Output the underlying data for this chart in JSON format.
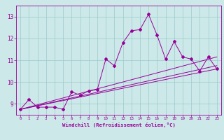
{
  "xlabel": "Windchill (Refroidissement éolien,°C)",
  "bg_color": "#cce8e8",
  "line_color": "#990099",
  "grid_color": "#99cccc",
  "axis_color": "#990099",
  "xlim": [
    -0.5,
    23.5
  ],
  "ylim": [
    8.5,
    13.5
  ],
  "xticks": [
    0,
    1,
    2,
    3,
    4,
    5,
    6,
    7,
    8,
    9,
    10,
    11,
    12,
    13,
    14,
    15,
    16,
    17,
    18,
    19,
    20,
    21,
    22,
    23
  ],
  "yticks": [
    9,
    10,
    11,
    12,
    13
  ],
  "series1_x": [
    0,
    1,
    2,
    3,
    4,
    5,
    6,
    7,
    8,
    9,
    10,
    11,
    12,
    13,
    14,
    15,
    16,
    17,
    18,
    19,
    20,
    21,
    22,
    23
  ],
  "series1_y": [
    8.75,
    9.2,
    8.85,
    8.85,
    8.85,
    8.75,
    9.55,
    9.4,
    9.6,
    9.65,
    11.05,
    10.75,
    11.8,
    12.35,
    12.4,
    13.1,
    12.15,
    11.05,
    11.85,
    11.15,
    11.05,
    10.5,
    11.15,
    10.6
  ],
  "trend1_x": [
    0,
    23
  ],
  "trend1_y": [
    8.75,
    10.75
  ],
  "trend2_x": [
    0,
    23
  ],
  "trend2_y": [
    8.75,
    11.15
  ],
  "trend3_x": [
    0,
    23
  ],
  "trend3_y": [
    8.75,
    10.6
  ]
}
